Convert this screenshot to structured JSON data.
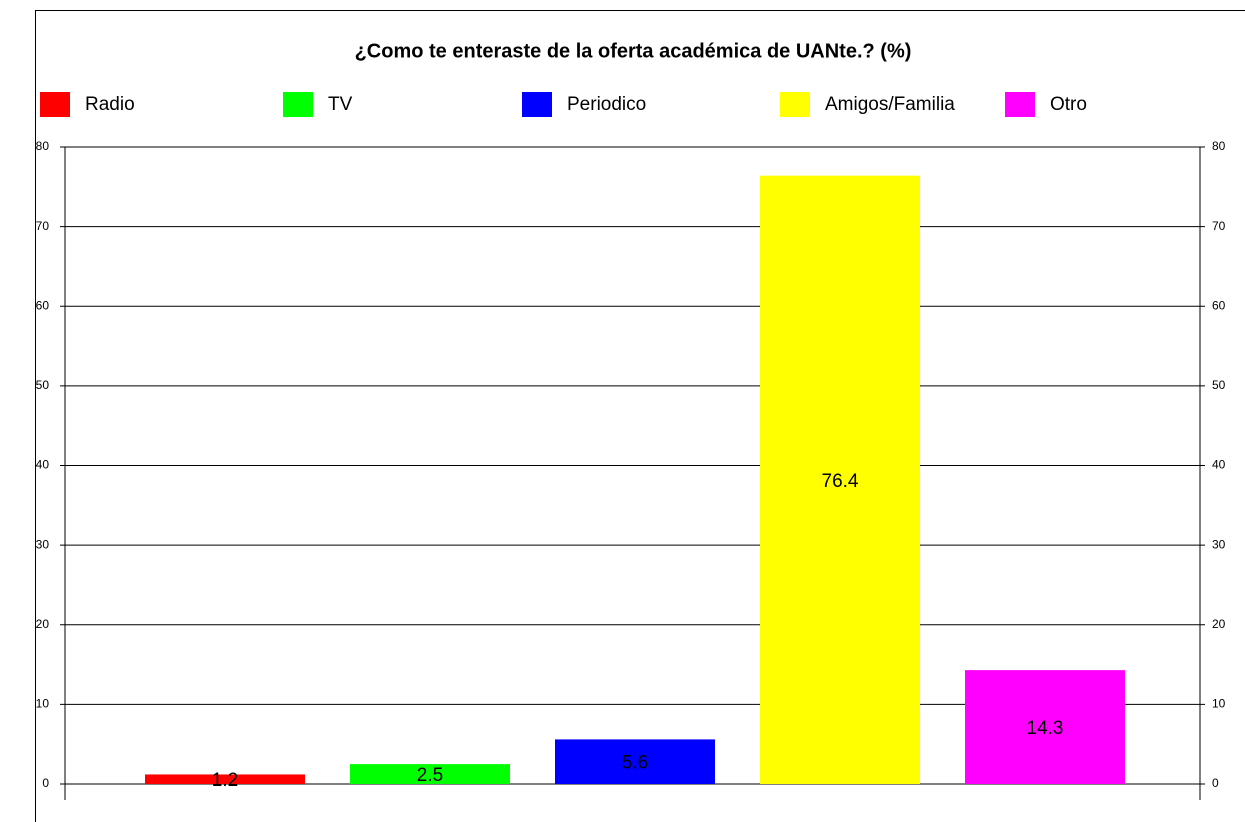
{
  "chart_data": {
    "type": "bar",
    "title": "¿Como te enteraste de la oferta académica de UANte.? (%)",
    "series": [
      {
        "name": "Radio",
        "color": "#ff0000",
        "values": [
          1.2
        ]
      },
      {
        "name": "TV",
        "color": "#00ff00",
        "values": [
          2.5
        ]
      },
      {
        "name": "Periodico",
        "color": "#0000ff",
        "values": [
          5.6
        ]
      },
      {
        "name": "Amigos/Familia",
        "color": "#ffff00",
        "values": [
          76.4
        ]
      },
      {
        "name": "Otro",
        "color": "#ff00ff",
        "values": [
          14.3
        ]
      }
    ],
    "ylim": [
      0,
      80
    ],
    "yticks": [
      0,
      10,
      20,
      30,
      40,
      50,
      60,
      70,
      80
    ],
    "y2lim": [
      0,
      80
    ],
    "y2ticks": [
      0,
      10,
      20,
      30,
      40,
      50,
      60,
      70,
      80
    ],
    "grid": true,
    "legend": "top"
  }
}
